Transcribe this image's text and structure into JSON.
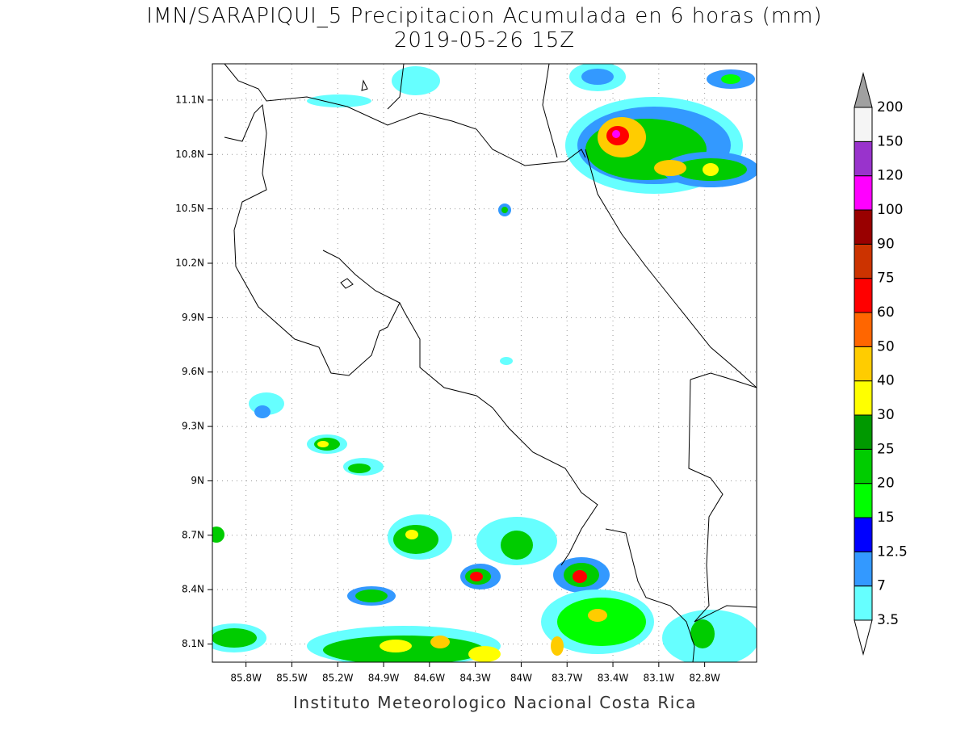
{
  "header": {
    "title": "IMN/SARAPIQUI_5 Precipitacion Acumulada en 6 horas (mm)",
    "subtitle": "2019-05-26 15Z"
  },
  "map": {
    "xlim": [
      -86.02,
      -82.46
    ],
    "ylim": [
      8.0,
      11.3
    ],
    "xticks": [
      {
        "value": -85.8,
        "label": "85.8W"
      },
      {
        "value": -85.5,
        "label": "85.5W"
      },
      {
        "value": -85.2,
        "label": "85.2W"
      },
      {
        "value": -84.9,
        "label": "84.9W"
      },
      {
        "value": -84.6,
        "label": "84.6W"
      },
      {
        "value": -84.3,
        "label": "84.3W"
      },
      {
        "value": -84.0,
        "label": "84W"
      },
      {
        "value": -83.7,
        "label": "83.7W"
      },
      {
        "value": -83.4,
        "label": "83.4W"
      },
      {
        "value": -83.1,
        "label": "83.1W"
      },
      {
        "value": -82.8,
        "label": "82.8W"
      }
    ],
    "yticks": [
      {
        "value": 8.1,
        "label": "8.1N"
      },
      {
        "value": 8.4,
        "label": "8.4N"
      },
      {
        "value": 8.7,
        "label": "8.7N"
      },
      {
        "value": 9.0,
        "label": "9N"
      },
      {
        "value": 9.3,
        "label": "9.3N"
      },
      {
        "value": 9.6,
        "label": "9.6N"
      },
      {
        "value": 9.9,
        "label": "9.9N"
      },
      {
        "value": 10.2,
        "label": "10.2N"
      },
      {
        "value": 10.5,
        "label": "10.5N"
      },
      {
        "value": 10.8,
        "label": "10.8N"
      },
      {
        "value": 11.1,
        "label": "11.1N"
      }
    ],
    "grid": true
  },
  "colorbar": {
    "levels": [
      3.5,
      7,
      12.5,
      15,
      20,
      25,
      30,
      40,
      50,
      60,
      75,
      90,
      100,
      120,
      150,
      200
    ],
    "colors": [
      "#66ffff",
      "#3399ff",
      "#0000ff",
      "#00ff00",
      "#00cc00",
      "#009900",
      "#ffff00",
      "#ffcc00",
      "#ff6600",
      "#ff0000",
      "#cc3300",
      "#990000",
      "#ff00ff",
      "#9933cc",
      "#f5f5f5"
    ],
    "under_color": "#ffffff",
    "over_color": "#a0a0a0"
  },
  "footer": "Instituto Meteorologico Nacional Costa Rica"
}
